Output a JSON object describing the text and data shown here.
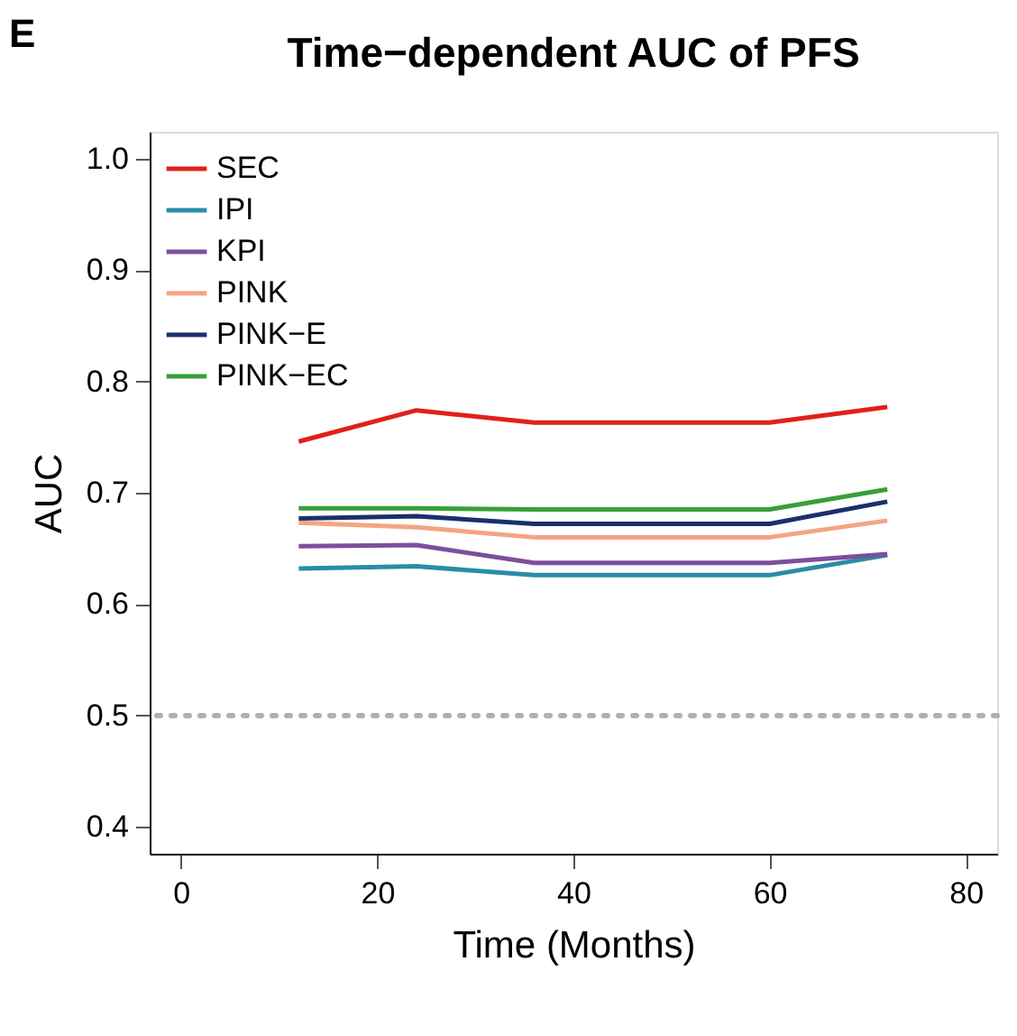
{
  "chart_data": {
    "type": "line",
    "title": "Time−dependent AUC of PFS",
    "xlabel": "Time (Months)",
    "ylabel": "AUC",
    "annotations": [
      "E"
    ],
    "x": [
      12,
      24,
      36,
      60,
      72
    ],
    "series": [
      {
        "name": "SEC",
        "color": "#e0201b",
        "values": [
          0.746,
          0.774,
          0.763,
          0.763,
          0.777
        ]
      },
      {
        "name": "IPI",
        "color": "#2a8ca8",
        "values": [
          0.632,
          0.634,
          0.626,
          0.626,
          0.644
        ]
      },
      {
        "name": "KPI",
        "color": "#7b4f9d",
        "values": [
          0.652,
          0.653,
          0.637,
          0.637,
          0.645
        ]
      },
      {
        "name": "PINK",
        "color": "#f4a582",
        "values": [
          0.673,
          0.669,
          0.66,
          0.66,
          0.675
        ]
      },
      {
        "name": "PINK−E",
        "color": "#1b2f6b",
        "values": [
          0.677,
          0.679,
          0.672,
          0.672,
          0.692
        ]
      },
      {
        "name": "PINK−EC",
        "color": "#3a9f3a",
        "values": [
          0.686,
          0.686,
          0.685,
          0.685,
          0.703
        ]
      }
    ],
    "xlim": [
      -3.2,
      83.2
    ],
    "ylim": [
      0.376,
      1.024
    ],
    "xticks": [
      0,
      20,
      40,
      60,
      80
    ],
    "yticks": [
      0.4,
      0.5,
      0.6,
      0.7,
      0.8,
      0.9,
      {
        "value": 1,
        "label": "1.0"
      }
    ],
    "ref_lines": [
      {
        "axis": "y",
        "value": 0.5,
        "label": null,
        "color": "#b0b0b0",
        "line_style": "dotted"
      }
    ],
    "grid": false,
    "legend": "top left"
  }
}
